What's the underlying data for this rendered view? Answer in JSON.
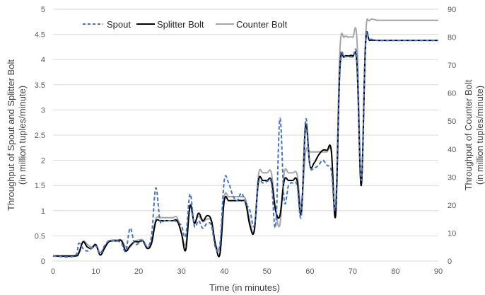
{
  "chart_data": {
    "type": "line",
    "xlabel": "Time (in minutes)",
    "ylabel_left_line1": "Throughput of Spout and Splitter Bolt",
    "ylabel_left_line2": "(in million tuples/minute)",
    "ylabel_right_line1": "Throughput of Counter Bolt",
    "ylabel_right_line2": "(in million tuples/minute)",
    "xlim": [
      0,
      90
    ],
    "x_ticks": [
      0,
      10,
      20,
      30,
      40,
      50,
      60,
      70,
      80,
      90
    ],
    "ylim_left": [
      0,
      5
    ],
    "y_ticks_left": [
      0,
      0.5,
      1,
      1.5,
      2,
      2.5,
      3,
      3.5,
      4,
      4.5,
      5
    ],
    "ylim_right": [
      0,
      90
    ],
    "y_ticks_right": [
      0,
      10,
      20,
      30,
      40,
      50,
      60,
      70,
      80,
      90
    ],
    "grid": "horizontal",
    "legend_position": "top-left",
    "series": [
      {
        "name": "Spout",
        "axis": "left",
        "color": "#4472C4",
        "style": "dashed",
        "x": [
          0,
          5,
          6,
          7,
          8,
          9,
          10,
          11,
          12,
          13,
          14,
          15,
          16,
          17,
          18,
          19,
          20,
          21,
          22,
          23,
          24,
          25,
          26,
          27,
          28,
          29,
          30,
          31,
          32,
          33,
          34,
          35,
          36,
          37,
          38,
          39,
          40,
          41,
          42,
          43,
          44,
          45,
          46,
          47,
          48,
          49,
          50,
          51,
          52,
          53,
          54,
          55,
          56,
          57,
          58,
          59,
          60,
          61,
          62,
          63,
          64,
          65,
          66,
          67,
          68,
          69,
          70,
          71,
          72,
          73,
          74,
          76,
          80,
          85,
          90
        ],
        "y": [
          0.1,
          0.1,
          0.35,
          0.25,
          0.2,
          0.25,
          0.3,
          0.15,
          0.3,
          0.4,
          0.4,
          0.4,
          0.35,
          0.2,
          0.65,
          0.35,
          0.35,
          0.4,
          0.3,
          0.5,
          1.45,
          0.8,
          0.8,
          0.8,
          0.8,
          0.78,
          0.7,
          0.5,
          1.33,
          0.7,
          0.8,
          0.65,
          0.75,
          0.7,
          0.25,
          0.35,
          1.6,
          1.55,
          1.3,
          1.2,
          1.35,
          1.15,
          1.0,
          0.7,
          1.55,
          1.55,
          1.58,
          1.55,
          0.7,
          2.83,
          1.2,
          1.5,
          1.55,
          1.5,
          0.9,
          2.8,
          1.9,
          1.85,
          1.9,
          2.0,
          1.9,
          1.8,
          1.1,
          3.9,
          4.05,
          4.05,
          4.05,
          4.0,
          1.6,
          4.3,
          4.4,
          4.38,
          4.38,
          4.38,
          4.38
        ]
      },
      {
        "name": "Splitter Bolt",
        "axis": "left",
        "color": "#000000",
        "style": "solid",
        "x": [
          0,
          5,
          6,
          7,
          8,
          9,
          10,
          11,
          12,
          13,
          14,
          15,
          16,
          17,
          18,
          19,
          20,
          21,
          22,
          23,
          24,
          25,
          26,
          27,
          28,
          29,
          30,
          31,
          32,
          33,
          34,
          35,
          36,
          37,
          38,
          39,
          40,
          41,
          42,
          43,
          44,
          45,
          46,
          47,
          48,
          49,
          50,
          51,
          52,
          53,
          54,
          55,
          56,
          57,
          58,
          59,
          60,
          61,
          62,
          63,
          64,
          65,
          66,
          67,
          68,
          69,
          70,
          71,
          72,
          73,
          74,
          76,
          80,
          85,
          90
        ],
        "y": [
          0.1,
          0.1,
          0.15,
          0.38,
          0.28,
          0.25,
          0.32,
          0.12,
          0.25,
          0.38,
          0.4,
          0.4,
          0.4,
          0.2,
          0.3,
          0.38,
          0.38,
          0.4,
          0.25,
          0.35,
          0.78,
          0.8,
          0.8,
          0.8,
          0.8,
          0.8,
          0.55,
          0.22,
          1.1,
          0.75,
          0.95,
          0.8,
          0.9,
          0.8,
          0.3,
          0.15,
          1.2,
          1.2,
          1.2,
          1.2,
          1.2,
          1.15,
          0.7,
          0.6,
          1.6,
          1.6,
          1.6,
          1.6,
          1.0,
          0.9,
          1.6,
          1.6,
          1.6,
          1.6,
          0.95,
          2.7,
          1.9,
          1.95,
          2.1,
          2.2,
          2.2,
          2.2,
          0.9,
          3.8,
          4.05,
          4.07,
          4.07,
          3.9,
          1.5,
          4.3,
          4.38,
          4.38,
          4.38,
          4.38,
          4.38
        ]
      },
      {
        "name": "Counter Bolt",
        "axis": "right",
        "color": "#A5A5A5",
        "style": "solid",
        "x": [
          0,
          5,
          6,
          7,
          8,
          9,
          10,
          11,
          12,
          13,
          14,
          15,
          16,
          17,
          18,
          19,
          20,
          21,
          22,
          23,
          24,
          25,
          26,
          27,
          28,
          29,
          30,
          31,
          32,
          33,
          34,
          35,
          36,
          37,
          38,
          39,
          40,
          41,
          42,
          43,
          44,
          45,
          46,
          47,
          48,
          49,
          50,
          51,
          52,
          53,
          54,
          55,
          56,
          57,
          58,
          59,
          60,
          61,
          62,
          63,
          64,
          65,
          66,
          67,
          68,
          69,
          70,
          71,
          72,
          73,
          74,
          76,
          80,
          85,
          90
        ],
        "y": [
          2,
          2,
          3,
          7,
          6,
          5,
          6,
          3,
          5,
          7,
          7.5,
          7.5,
          7.5,
          5,
          5,
          7,
          7.5,
          7.5,
          5,
          7,
          15,
          15.5,
          15.5,
          15.5,
          15.5,
          15.5,
          10,
          6,
          19,
          14,
          16,
          14,
          15,
          14,
          6,
          5,
          23,
          23,
          23,
          23,
          23,
          22,
          14,
          11,
          31,
          31.5,
          31.5,
          31.5,
          18,
          13,
          31.5,
          31.5,
          31.5,
          31,
          20,
          39,
          39,
          39,
          39,
          39,
          39,
          39,
          18,
          75,
          80,
          80,
          80,
          79,
          28,
          80,
          86,
          86,
          86,
          86,
          86
        ]
      }
    ]
  }
}
